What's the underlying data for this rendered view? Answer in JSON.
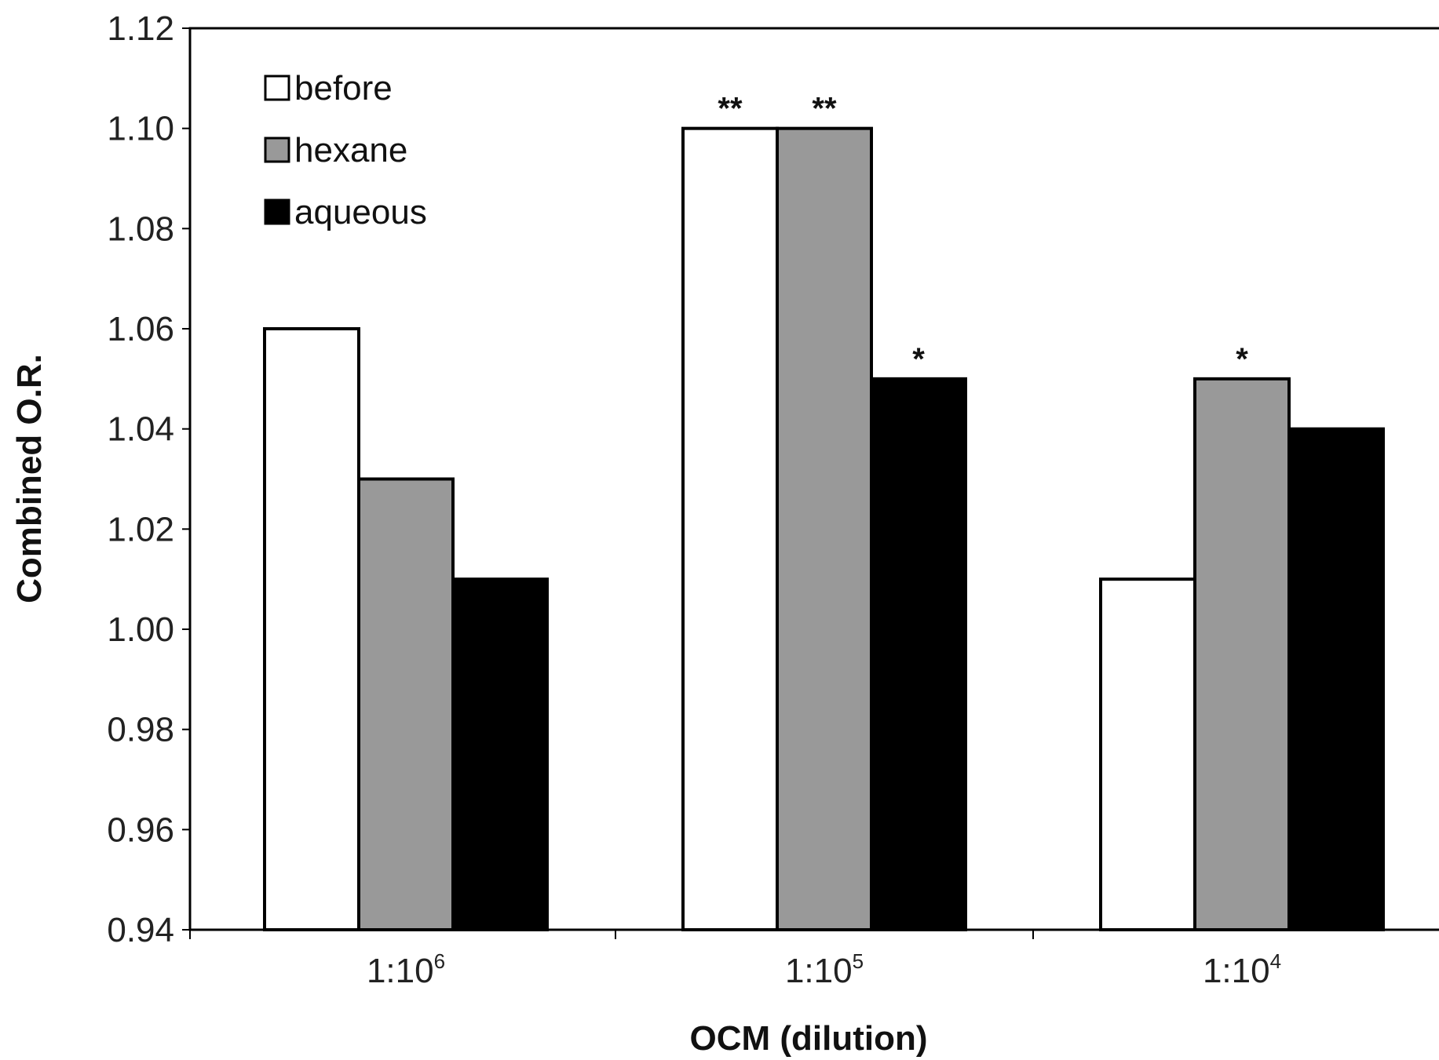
{
  "chart_data": {
    "type": "bar",
    "title": "",
    "xlabel": "OCM (dilution)",
    "ylabel": "Combined O.R.",
    "ylim": [
      0.94,
      1.12
    ],
    "y_ticks": [
      "0.94",
      "0.96",
      "0.98",
      "1.00",
      "1.02",
      "1.04",
      "1.06",
      "1.08",
      "1.10",
      "1.12"
    ],
    "y_tick_values": [
      0.94,
      0.96,
      0.98,
      1.0,
      1.02,
      1.04,
      1.06,
      1.08,
      1.1,
      1.12
    ],
    "categories": [
      {
        "base": "1:10",
        "exp": "6"
      },
      {
        "base": "1:10",
        "exp": "5"
      },
      {
        "base": "1:10",
        "exp": "4"
      }
    ],
    "legend_position": "top-left",
    "grid": false,
    "series": [
      {
        "name": "before",
        "color": "#ffffff",
        "values": [
          1.06,
          1.1,
          1.01
        ],
        "significance": [
          "",
          "**",
          ""
        ]
      },
      {
        "name": "hexane",
        "color": "#999999",
        "values": [
          1.03,
          1.1,
          1.05
        ],
        "significance": [
          "",
          "**",
          "*"
        ]
      },
      {
        "name": "aqueous",
        "color": "#000000",
        "values": [
          1.01,
          1.05,
          1.04
        ],
        "significance": [
          "",
          "*",
          ""
        ]
      }
    ]
  }
}
